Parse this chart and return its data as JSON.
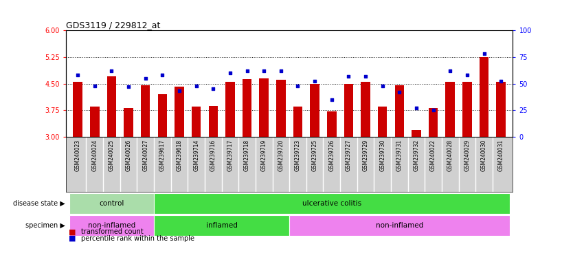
{
  "title": "GDS3119 / 229812_at",
  "samples": [
    "GSM240023",
    "GSM240024",
    "GSM240025",
    "GSM240026",
    "GSM240027",
    "GSM239617",
    "GSM239618",
    "GSM239714",
    "GSM239716",
    "GSM239717",
    "GSM239718",
    "GSM239719",
    "GSM239720",
    "GSM239723",
    "GSM239725",
    "GSM239726",
    "GSM239727",
    "GSM239729",
    "GSM239730",
    "GSM239731",
    "GSM239732",
    "GSM240022",
    "GSM240028",
    "GSM240029",
    "GSM240030",
    "GSM240031"
  ],
  "bar_values": [
    4.55,
    3.85,
    4.7,
    3.82,
    4.45,
    4.2,
    4.42,
    3.85,
    3.88,
    4.55,
    4.62,
    4.65,
    4.6,
    3.85,
    4.5,
    3.72,
    4.5,
    4.55,
    3.85,
    4.45,
    3.2,
    3.82,
    4.55,
    4.55,
    5.25,
    4.55
  ],
  "dot_values": [
    58,
    48,
    62,
    47,
    55,
    58,
    43,
    48,
    45,
    60,
    62,
    62,
    62,
    48,
    52,
    35,
    57,
    57,
    48,
    42,
    27,
    25,
    62,
    58,
    78,
    52
  ],
  "ylim_left": [
    3,
    6
  ],
  "ylim_right": [
    0,
    100
  ],
  "yticks_left": [
    3,
    3.75,
    4.5,
    5.25,
    6
  ],
  "yticks_right": [
    0,
    25,
    50,
    75,
    100
  ],
  "bar_color": "#cc0000",
  "dot_color": "#0000cc",
  "bg_color": "#ffffff",
  "plot_bg": "#ffffff",
  "xticklabel_bg": "#d0d0d0",
  "disease_state_groups": [
    {
      "label": "control",
      "start": 0,
      "end": 5,
      "color": "#aaddaa"
    },
    {
      "label": "ulcerative colitis",
      "start": 5,
      "end": 26,
      "color": "#44dd44"
    }
  ],
  "specimen_groups": [
    {
      "label": "non-inflamed",
      "start": 0,
      "end": 5,
      "color": "#ee82ee"
    },
    {
      "label": "inflamed",
      "start": 5,
      "end": 13,
      "color": "#44dd44"
    },
    {
      "label": "non-inflamed",
      "start": 13,
      "end": 26,
      "color": "#ee82ee"
    }
  ],
  "disease_state_row_label": "disease state",
  "specimen_row_label": "specimen",
  "legend_items": [
    {
      "label": "transformed count",
      "color": "#cc0000"
    },
    {
      "label": "percentile rank within the sample",
      "color": "#0000cc"
    }
  ],
  "hline_ticks": [
    3.75,
    4.5,
    5.25
  ],
  "bar_width": 0.55
}
